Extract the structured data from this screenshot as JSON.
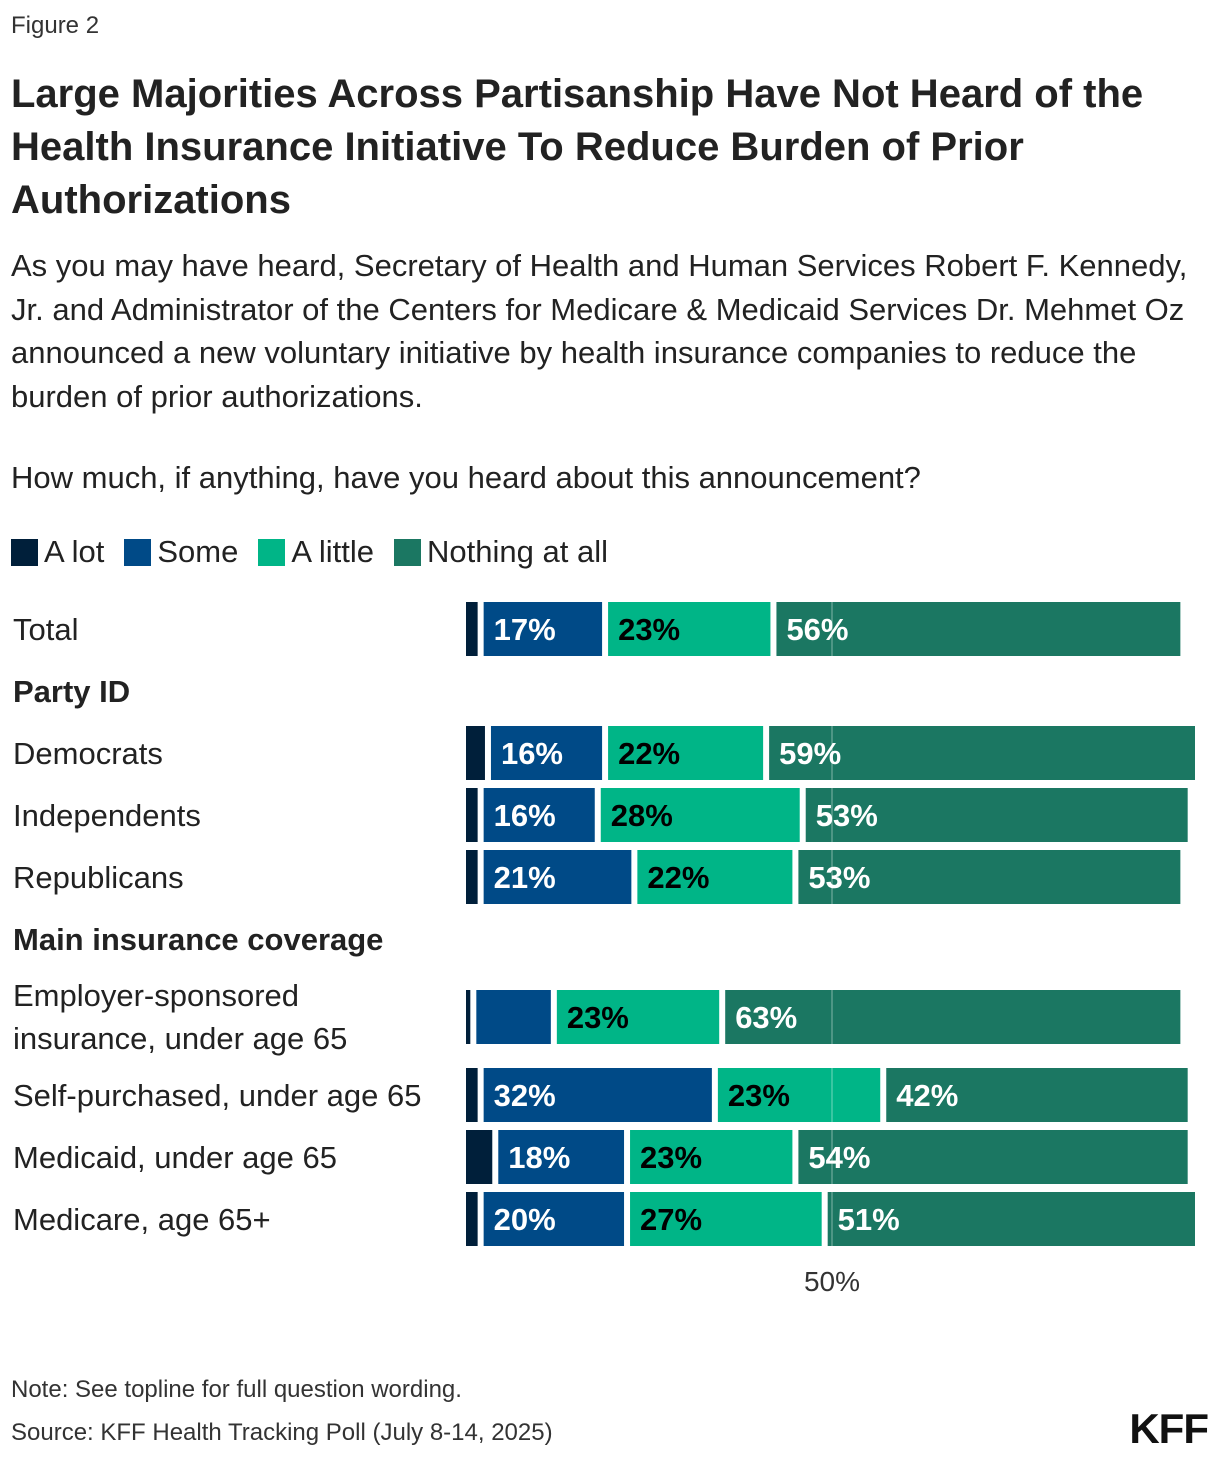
{
  "figure_label": "Figure 2",
  "title": "Large Majorities Across Partisanship Have Not Heard of the Health Insurance Initiative To Reduce Burden of Prior Authorizations",
  "subtitle": "As you may have heard, Secretary of Health and Human Services Robert F. Kennedy, Jr. and Administrator of the Centers for Medicare & Medicaid Services Dr. Mehmet Oz announced a new voluntary initiative by health insurance companies to reduce the burden of prior authorizations.",
  "question": "How much, if anything, have you heard about this announcement?",
  "note": "Note: See topline for full question wording.",
  "source": "Source: KFF Health Tracking Poll (July 8-14, 2025)",
  "logo": "KFF",
  "chart_data": {
    "type": "bar",
    "orientation": "horizontal",
    "stacked": true,
    "legend_position": "top-left",
    "xlim": [
      0,
      100
    ],
    "reference_line": {
      "value": 50,
      "label": "50%"
    },
    "groups": [
      "Party ID",
      "Main insurance coverage"
    ],
    "categories": [
      "Total",
      "Democrats",
      "Independents",
      "Republicans",
      "Employer-sponsored insurance, under age 65",
      "Self-purchased, under age 65",
      "Medicaid, under age 65",
      "Medicare, age 65+"
    ],
    "category_group": [
      null,
      "Party ID",
      "Party ID",
      "Party ID",
      "Main insurance coverage",
      "Main insurance coverage",
      "Main insurance coverage",
      "Main insurance coverage"
    ],
    "series": [
      {
        "name": "A lot",
        "color": "#001f3a",
        "label_color": "#ffffff",
        "values": [
          2,
          3,
          2,
          2,
          1,
          2,
          4,
          2
        ],
        "labels": [
          "",
          "",
          "",
          "",
          "",
          "",
          "",
          ""
        ]
      },
      {
        "name": "Some",
        "color": "#004a87",
        "label_color": "#ffffff",
        "values": [
          17,
          16,
          16,
          21,
          11,
          32,
          18,
          20
        ],
        "labels": [
          "17%",
          "16%",
          "16%",
          "21%",
          "",
          "32%",
          "18%",
          "20%"
        ]
      },
      {
        "name": "A little",
        "color": "#00b587",
        "label_color": "#000000",
        "values": [
          23,
          22,
          28,
          22,
          23,
          23,
          23,
          27
        ],
        "labels": [
          "23%",
          "22%",
          "28%",
          "22%",
          "23%",
          "23%",
          "23%",
          "27%"
        ]
      },
      {
        "name": "Nothing at all",
        "color": "#1b7762",
        "label_color": "#ffffff",
        "values": [
          56,
          59,
          53,
          53,
          63,
          42,
          54,
          51
        ],
        "labels": [
          "56%",
          "59%",
          "53%",
          "53%",
          "63%",
          "42%",
          "54%",
          "51%"
        ]
      }
    ]
  }
}
